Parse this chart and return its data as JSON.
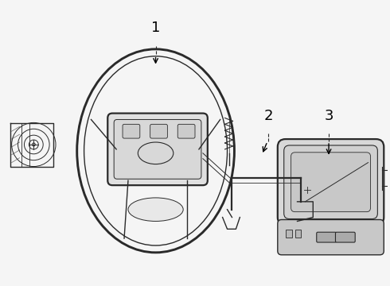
{
  "background_color": "#f5f5f5",
  "line_color": "#2a2a2a",
  "label_color": "#000000",
  "parts": [
    "1",
    "2",
    "3"
  ],
  "figsize": [
    4.9,
    3.6
  ],
  "dpi": 100
}
